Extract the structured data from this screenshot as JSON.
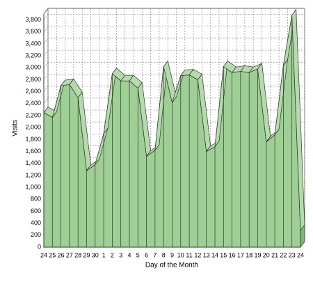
{
  "chart_data": {
    "type": "area3d",
    "x_label": "Day of the Month",
    "y_label": "Visits",
    "categories": [
      "24",
      "25",
      "26",
      "27",
      "28",
      "29",
      "30",
      "1",
      "2",
      "3",
      "4",
      "5",
      "6",
      "7",
      "8",
      "9",
      "10",
      "11",
      "12",
      "13",
      "14",
      "15",
      "16",
      "17",
      "18",
      "19",
      "20",
      "21",
      "22",
      "23",
      "24"
    ],
    "values": [
      2250,
      2170,
      2700,
      2720,
      2500,
      1280,
      1380,
      1900,
      2900,
      2780,
      2780,
      2660,
      1520,
      1620,
      3020,
      2420,
      2870,
      2880,
      2800,
      1600,
      1680,
      3020,
      2920,
      2940,
      2920,
      2980,
      1760,
      1880,
      3040,
      3880,
      280
    ],
    "color": "#9ecf94",
    "ylim": [
      0,
      3900
    ],
    "yticks": [
      0,
      200,
      400,
      600,
      800,
      {
        "value": 1000,
        "label": "1,000"
      },
      {
        "value": 1200,
        "label": "1,200"
      },
      {
        "value": 1400,
        "label": "1,400"
      },
      {
        "value": 1600,
        "label": "1,600"
      },
      {
        "value": 1800,
        "label": "1,800"
      },
      {
        "value": 2000,
        "label": "2,000"
      },
      {
        "value": 2200,
        "label": "2,200"
      },
      {
        "value": 2400,
        "label": "2,400"
      },
      {
        "value": 2600,
        "label": "2,600"
      },
      {
        "value": 2800,
        "label": "2,800"
      },
      {
        "value": 3000,
        "label": "3,000"
      },
      {
        "value": 3200,
        "label": "3,200"
      },
      {
        "value": 3400,
        "label": "3,400"
      },
      {
        "value": 3600,
        "label": "3,600"
      },
      {
        "value": 3800,
        "label": "3,800"
      }
    ],
    "grid": true
  }
}
